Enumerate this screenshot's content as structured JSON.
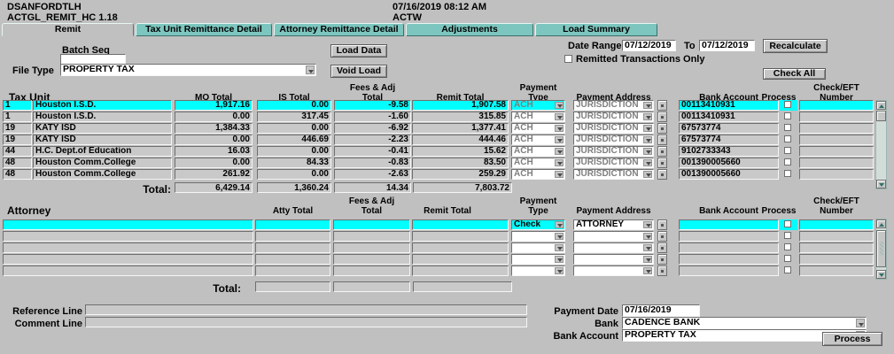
{
  "window": {
    "user": "DSANFORDTLH",
    "module": "ACTGL_REMIT_HC 1.18",
    "datetime": "07/16/2019 08:12 AM",
    "environment": "ACTW"
  },
  "tabs": [
    {
      "label": "Remit",
      "active": true
    },
    {
      "label": "Tax Unit Remittance Detail",
      "active": false
    },
    {
      "label": "Attorney Remittance Detail",
      "active": false
    },
    {
      "label": "Adjustments",
      "active": false
    },
    {
      "label": "Load Summary",
      "active": false
    }
  ],
  "controls": {
    "batch_seq_label": "Batch Seq",
    "batch_seq_value": "",
    "file_type_label": "File Type",
    "file_type_value": "PROPERTY TAX",
    "load_data_button": "Load Data",
    "void_load_button": "Void Load",
    "date_range_label": "Date Range",
    "date_from": "07/12/2019",
    "to_label": "To",
    "date_to": "07/12/2019",
    "recalculate_button": "Recalculate",
    "remitted_only_label": "Remitted Transactions Only",
    "remitted_only_checked": false,
    "check_all_button": "Check All"
  },
  "tax_table": {
    "headers": {
      "tax_unit": "Tax Unit",
      "mo_total": "MO Total",
      "is_total": "IS Total",
      "fees_line1": "Fees & Adj",
      "fees_line2": "Total",
      "remit_total": "Remit Total",
      "payment_line1": "Payment",
      "payment_line2": "Type",
      "payment_address": "Payment Address",
      "bank_account": "Bank Account",
      "process": "Process",
      "check_line1": "Check/EFT",
      "check_line2": "Number"
    },
    "rows": [
      {
        "num": "1",
        "name": "Houston I.S.D.",
        "mo": "1,917.16",
        "is": "0.00",
        "fees": "-9.58",
        "remit": "1,907.58",
        "ptype": "ACH",
        "paddr": "JURISDICTION",
        "bank": "00113410931",
        "check_eft": ""
      },
      {
        "num": "1",
        "name": "Houston I.S.D.",
        "mo": "0.00",
        "is": "317.45",
        "fees": "-1.60",
        "remit": "315.85",
        "ptype": "ACH",
        "paddr": "JURISDICTION",
        "bank": "00113410931",
        "check_eft": ""
      },
      {
        "num": "19",
        "name": "KATY ISD",
        "mo": "1,384.33",
        "is": "0.00",
        "fees": "-6.92",
        "remit": "1,377.41",
        "ptype": "ACH",
        "paddr": "JURISDICTION",
        "bank": "67573774",
        "check_eft": ""
      },
      {
        "num": "19",
        "name": "KATY ISD",
        "mo": "0.00",
        "is": "446.69",
        "fees": "-2.23",
        "remit": "444.46",
        "ptype": "ACH",
        "paddr": "JURISDICTION",
        "bank": "67573774",
        "check_eft": ""
      },
      {
        "num": "44",
        "name": "H.C. Dept.of Education",
        "mo": "16.03",
        "is": "0.00",
        "fees": "-0.41",
        "remit": "15.62",
        "ptype": "ACH",
        "paddr": "JURISDICTION",
        "bank": "9102733343",
        "check_eft": ""
      },
      {
        "num": "48",
        "name": "Houston Comm.College",
        "mo": "0.00",
        "is": "84.33",
        "fees": "-0.83",
        "remit": "83.50",
        "ptype": "ACH",
        "paddr": "JURISDICTION",
        "bank": "001390005660",
        "check_eft": ""
      },
      {
        "num": "48",
        "name": "Houston Comm.College",
        "mo": "261.92",
        "is": "0.00",
        "fees": "-2.63",
        "remit": "259.29",
        "ptype": "ACH",
        "paddr": "JURISDICTION",
        "bank": "001390005660",
        "check_eft": ""
      }
    ],
    "total_label": "Total:",
    "totals": {
      "mo": "6,429.14",
      "is": "1,360.24",
      "fees": "14.34",
      "remit": "7,803.72"
    }
  },
  "attorney_table": {
    "section_label": "Attorney",
    "headers": {
      "atty_total": "Atty Total",
      "fees_line1": "Fees & Adj",
      "fees_line2": "Total",
      "remit_total": "Remit Total",
      "payment_line1": "Payment",
      "payment_line2": "Type",
      "payment_address": "Payment Address",
      "bank_account": "Bank Account",
      "process": "Process",
      "check_line1": "Check/EFT",
      "check_line2": "Number"
    },
    "rows": [
      {
        "name": "",
        "atty": "",
        "fees": "",
        "remit": "",
        "ptype": "Check",
        "paddr": "ATTORNEY",
        "bank": "",
        "check_eft": ""
      },
      {
        "name": "",
        "atty": "",
        "fees": "",
        "remit": "",
        "ptype": "",
        "paddr": "",
        "bank": "",
        "check_eft": ""
      },
      {
        "name": "",
        "atty": "",
        "fees": "",
        "remit": "",
        "ptype": "",
        "paddr": "",
        "bank": "",
        "check_eft": ""
      },
      {
        "name": "",
        "atty": "",
        "fees": "",
        "remit": "",
        "ptype": "",
        "paddr": "",
        "bank": "",
        "check_eft": ""
      },
      {
        "name": "",
        "atty": "",
        "fees": "",
        "remit": "",
        "ptype": "",
        "paddr": "",
        "bank": "",
        "check_eft": ""
      }
    ],
    "total_label": "Total:",
    "totals": {
      "atty": "",
      "fees": "",
      "remit": ""
    }
  },
  "footer": {
    "reference_label": "Reference Line",
    "reference_value": "",
    "comment_label": "Comment Line",
    "comment_value": "",
    "payment_date_label": "Payment Date",
    "payment_date": "07/16/2019",
    "bank_label": "Bank",
    "bank_value": "CADENCE BANK",
    "bank_account_label": "Bank Account",
    "bank_account_value": "PROPERTY TAX",
    "process_button": "Process"
  },
  "colors": {
    "background": "#c0c0c0",
    "tab_teal": "#7cc6bf",
    "row_highlight": "#00ffff",
    "disabled_text": "#7e7e7e"
  }
}
